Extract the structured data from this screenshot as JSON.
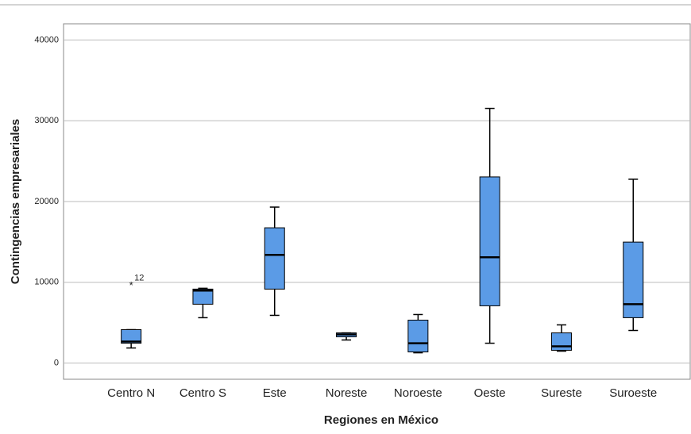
{
  "chart_data": {
    "type": "boxplot",
    "x_label": "Regiones en México",
    "y_label": "Contingencias empresariales",
    "categories": [
      "Centro N",
      "Centro S",
      "Este",
      "Noreste",
      "Noroeste",
      "Oeste",
      "Sureste",
      "Suroeste"
    ],
    "boxes": [
      {
        "min": 1870,
        "q1": 2460,
        "median": 2660,
        "q3": 4140,
        "max": 4140
      },
      {
        "min": 5620,
        "q1": 7290,
        "median": 8970,
        "q3": 9160,
        "max": 9260
      },
      {
        "min": 5910,
        "q1": 9160,
        "median": 13400,
        "q3": 16750,
        "max": 19310
      },
      {
        "min": 2860,
        "q1": 3250,
        "median": 3550,
        "q3": 3740,
        "max": 3740
      },
      {
        "min": 1280,
        "q1": 1380,
        "median": 2460,
        "q3": 5320,
        "max": 6010
      },
      {
        "min": 2460,
        "q1": 7090,
        "median": 13100,
        "q3": 23050,
        "max": 31530
      },
      {
        "min": 1480,
        "q1": 1580,
        "median": 2070,
        "q3": 3740,
        "max": 4730
      },
      {
        "min": 4040,
        "q1": 5620,
        "median": 7290,
        "q3": 14980,
        "max": 22760
      }
    ],
    "outliers": [
      {
        "category": 0,
        "value": 9650,
        "label": "12"
      }
    ],
    "color": "#5b9be6",
    "ylim": [
      -2000,
      42000
    ],
    "yticks": [
      0,
      10000,
      20000,
      30000,
      40000
    ],
    "grid": true
  }
}
